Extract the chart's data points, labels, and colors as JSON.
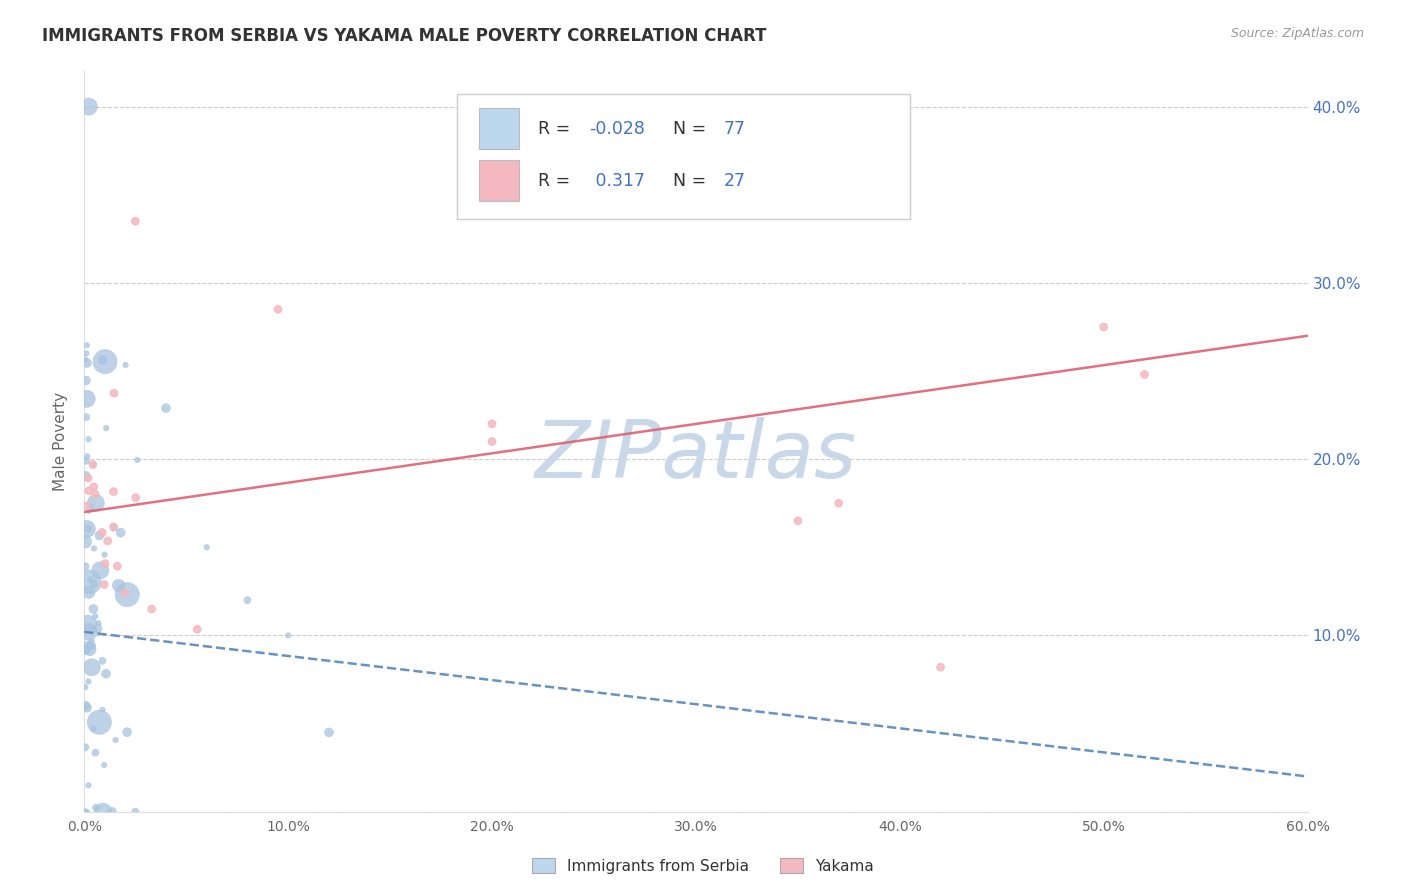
{
  "title": "IMMIGRANTS FROM SERBIA VS YAKAMA MALE POVERTY CORRELATION CHART",
  "source": "Source: ZipAtlas.com",
  "ylabel": "Male Poverty",
  "legend_labels": [
    "Immigrants from Serbia",
    "Yakama"
  ],
  "r_serbia": -0.028,
  "n_serbia": 77,
  "r_yakama": 0.317,
  "n_yakama": 27,
  "xlim": [
    0.0,
    0.6
  ],
  "ylim": [
    0.0,
    0.42
  ],
  "xtick_vals": [
    0.0,
    0.1,
    0.2,
    0.3,
    0.4,
    0.5,
    0.6
  ],
  "ytick_vals": [
    0.0,
    0.1,
    0.2,
    0.3,
    0.4
  ],
  "ytick_labels_right": [
    "",
    "10.0%",
    "20.0%",
    "30.0%",
    "40.0%"
  ],
  "xtick_labels": [
    "0.0%",
    "10.0%",
    "20.0%",
    "30.0%",
    "40.0%",
    "50.0%",
    "60.0%"
  ],
  "color_serbia": "#a8c4e0",
  "color_serbia_line": "#5588bb",
  "color_yakama": "#f4b8c1",
  "color_yakama_line": "#e06070",
  "color_legend_serbia_fill": "#bdd7ee",
  "color_legend_yakama_fill": "#f4b8c1",
  "watermark": "ZIPatlas",
  "watermark_color": "#c8d8e8",
  "background_color": "#ffffff",
  "serbia_line_x0": 0.0,
  "serbia_line_x1": 0.6,
  "serbia_line_y0": 0.102,
  "serbia_line_y1": 0.02,
  "yakama_line_x0": 0.0,
  "yakama_line_x1": 0.6,
  "yakama_line_y0": 0.17,
  "yakama_line_y1": 0.27
}
